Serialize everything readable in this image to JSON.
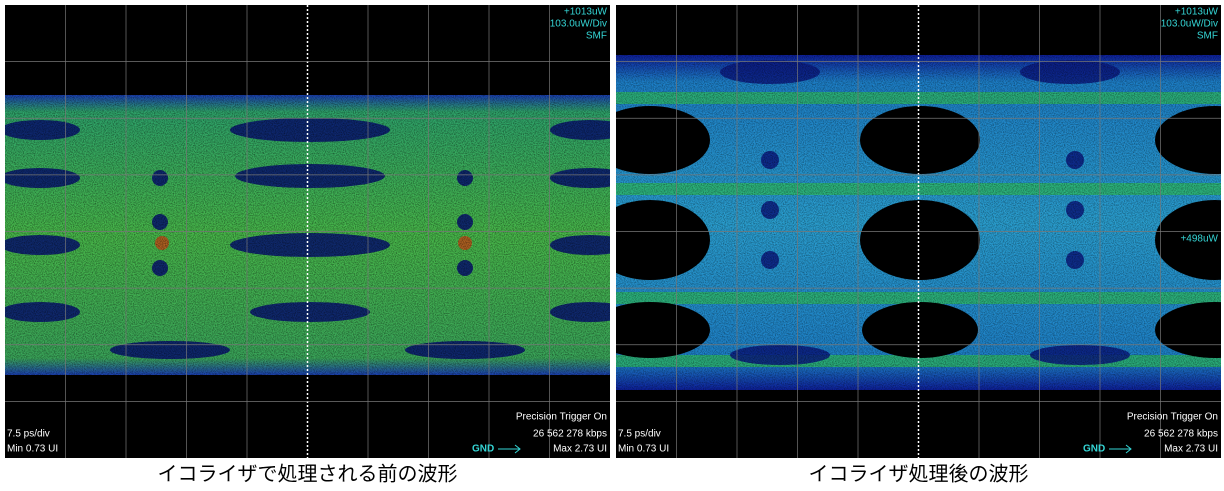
{
  "screens": [
    {
      "top_level": "+1013uW",
      "scale": "103.0uW/Div",
      "fiber": "SMF",
      "timebase": "7.5 ps/div",
      "min": "Min 0.73 UI",
      "trigger": "Precision Trigger On",
      "rate": "26 562 278 kbps",
      "gnd": "GND",
      "max": "Max 2.73 UI",
      "caption": "イコライザで処理される前の波形"
    },
    {
      "top_level": "+1013uW",
      "scale": "103.0uW/Div",
      "fiber": "SMF",
      "level_marker": "+498uW",
      "timebase": "7.5 ps/div",
      "min": "Min 0.73 UI",
      "trigger": "Precision Trigger On",
      "rate": "26 562 278 kbps",
      "gnd": "GND",
      "max": "Max 2.73 UI",
      "caption": "イコライザ処理後の波形"
    }
  ]
}
